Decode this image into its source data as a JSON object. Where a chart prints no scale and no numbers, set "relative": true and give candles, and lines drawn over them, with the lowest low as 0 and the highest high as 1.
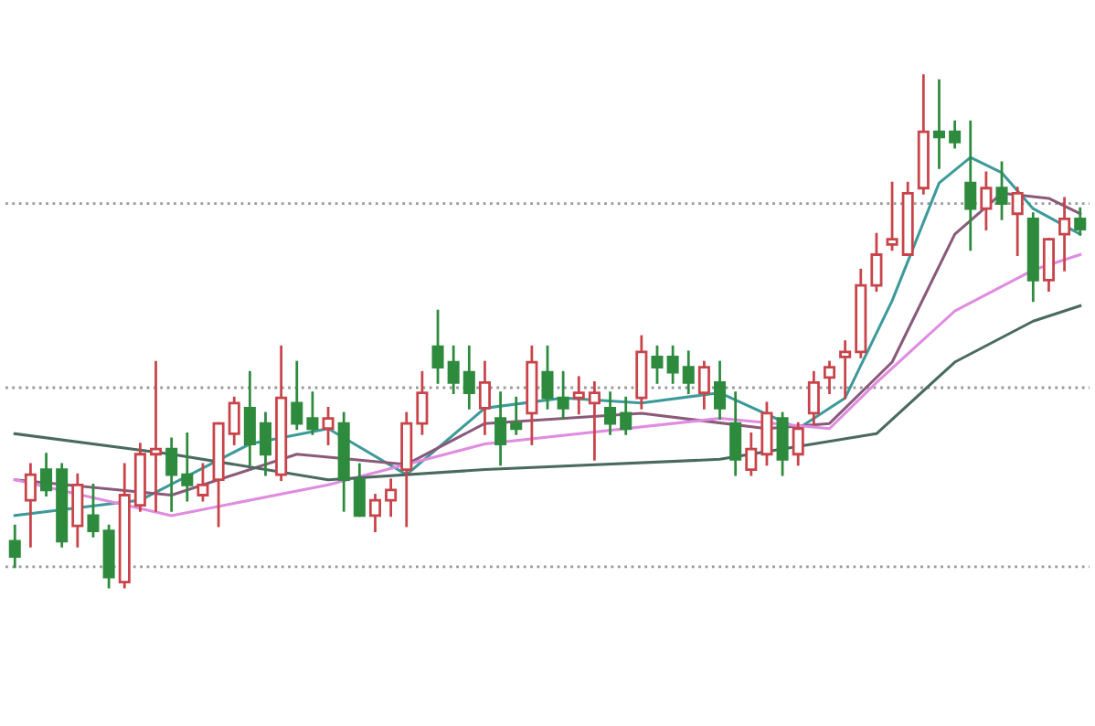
{
  "chart_data": {
    "type": "candlestick",
    "relative": true,
    "categories": [
      null,
      null,
      null,
      null,
      null,
      null,
      null,
      null,
      null,
      null,
      null,
      null,
      null,
      null,
      null,
      null,
      null,
      null,
      null,
      null,
      null,
      null,
      null,
      null,
      null,
      null,
      null,
      null,
      null,
      null,
      null,
      null,
      null,
      null,
      null,
      null,
      null,
      null,
      null,
      null,
      null,
      null,
      null,
      null,
      null,
      null,
      null,
      null,
      null,
      null,
      null,
      null,
      null,
      null,
      null,
      null,
      null,
      null,
      null,
      null,
      null,
      null,
      null,
      null,
      null,
      null,
      null,
      null,
      null
    ],
    "ohlc": [
      [
        0.09,
        0.12,
        0.04,
        0.06
      ],
      [
        0.17,
        0.24,
        0.08,
        0.22
      ],
      [
        0.23,
        0.26,
        0.18,
        0.19
      ],
      [
        0.23,
        0.24,
        0.08,
        0.09
      ],
      [
        0.12,
        0.22,
        0.08,
        0.2
      ],
      [
        0.14,
        0.2,
        0.1,
        0.11
      ],
      [
        0.11,
        0.12,
        0.0,
        0.02
      ],
      [
        0.01,
        0.24,
        0.0,
        0.18
      ],
      [
        0.16,
        0.28,
        0.15,
        0.26
      ],
      [
        0.26,
        0.44,
        0.15,
        0.27
      ],
      [
        0.27,
        0.29,
        0.15,
        0.22
      ],
      [
        0.22,
        0.3,
        0.17,
        0.2
      ],
      [
        0.18,
        0.24,
        0.17,
        0.2
      ],
      [
        0.21,
        0.32,
        0.12,
        0.32
      ],
      [
        0.3,
        0.37,
        0.28,
        0.36
      ],
      [
        0.35,
        0.42,
        0.24,
        0.28
      ],
      [
        0.32,
        0.34,
        0.22,
        0.26
      ],
      [
        0.22,
        0.47,
        0.21,
        0.37
      ],
      [
        0.36,
        0.44,
        0.31,
        0.32
      ],
      [
        0.33,
        0.38,
        0.3,
        0.31
      ],
      [
        0.31,
        0.35,
        0.28,
        0.33
      ],
      [
        0.32,
        0.34,
        0.15,
        0.21
      ],
      [
        0.21,
        0.24,
        0.14,
        0.14
      ],
      [
        0.14,
        0.18,
        0.11,
        0.17
      ],
      [
        0.17,
        0.21,
        0.14,
        0.19
      ],
      [
        0.23,
        0.34,
        0.12,
        0.32
      ],
      [
        0.32,
        0.42,
        0.3,
        0.38
      ],
      [
        0.47,
        0.54,
        0.4,
        0.43
      ],
      [
        0.44,
        0.47,
        0.38,
        0.4
      ],
      [
        0.42,
        0.47,
        0.35,
        0.38
      ],
      [
        0.35,
        0.44,
        0.3,
        0.4
      ],
      [
        0.33,
        0.38,
        0.24,
        0.28
      ],
      [
        0.32,
        0.37,
        0.3,
        0.31
      ],
      [
        0.34,
        0.47,
        0.28,
        0.44
      ],
      [
        0.42,
        0.47,
        0.35,
        0.37
      ],
      [
        0.37,
        0.42,
        0.33,
        0.35
      ],
      [
        0.37,
        0.41,
        0.34,
        0.38
      ],
      [
        0.36,
        0.4,
        0.25,
        0.38
      ],
      [
        0.35,
        0.38,
        0.3,
        0.32
      ],
      [
        0.34,
        0.37,
        0.3,
        0.31
      ],
      [
        0.37,
        0.49,
        0.35,
        0.46
      ],
      [
        0.45,
        0.47,
        0.4,
        0.43
      ],
      [
        0.45,
        0.47,
        0.4,
        0.42
      ],
      [
        0.43,
        0.46,
        0.38,
        0.4
      ],
      [
        0.38,
        0.44,
        0.35,
        0.43
      ],
      [
        0.4,
        0.44,
        0.33,
        0.35
      ],
      [
        0.32,
        0.38,
        0.22,
        0.25
      ],
      [
        0.23,
        0.3,
        0.22,
        0.27
      ],
      [
        0.26,
        0.36,
        0.24,
        0.34
      ],
      [
        0.33,
        0.34,
        0.22,
        0.25
      ],
      [
        0.26,
        0.32,
        0.24,
        0.31
      ],
      [
        0.34,
        0.42,
        0.32,
        0.4
      ],
      [
        0.41,
        0.44,
        0.38,
        0.43
      ],
      [
        0.45,
        0.48,
        0.37,
        0.46
      ],
      [
        0.46,
        0.62,
        0.45,
        0.59
      ],
      [
        0.59,
        0.69,
        0.58,
        0.65
      ],
      [
        0.67,
        0.79,
        0.66,
        0.68
      ],
      [
        0.65,
        0.79,
        0.65,
        0.77
      ],
      [
        0.78,
        1.0,
        0.77,
        0.89
      ],
      [
        0.89,
        0.99,
        0.82,
        0.88
      ],
      [
        0.89,
        0.91,
        0.86,
        0.87
      ],
      [
        0.79,
        0.91,
        0.66,
        0.74
      ],
      [
        0.74,
        0.81,
        0.7,
        0.78
      ],
      [
        0.78,
        0.83,
        0.72,
        0.75
      ],
      [
        0.73,
        0.78,
        0.65,
        0.77
      ],
      [
        0.72,
        0.73,
        0.56,
        0.6
      ],
      [
        0.6,
        0.68,
        0.58,
        0.68
      ],
      [
        0.69,
        0.76,
        0.62,
        0.72
      ],
      [
        0.72,
        0.74,
        0.69,
        0.7
      ]
    ],
    "colors": [
      "#2e8b3e",
      "#c8444a",
      "#2e8b3e",
      "#2e8b3e",
      "#c8444a",
      "#2e8b3e",
      "#2e8b3e",
      "#c8444a",
      "#c8444a",
      "#c8444a",
      "#2e8b3e",
      "#2e8b3e",
      "#c8444a",
      "#c8444a",
      "#c8444a",
      "#2e8b3e",
      "#2e8b3e",
      "#c8444a",
      "#2e8b3e",
      "#2e8b3e",
      "#c8444a",
      "#2e8b3e",
      "#2e8b3e",
      "#c8444a",
      "#c8444a",
      "#c8444a",
      "#c8444a",
      "#2e8b3e",
      "#2e8b3e",
      "#2e8b3e",
      "#c8444a",
      "#2e8b3e",
      "#2e8b3e",
      "#c8444a",
      "#2e8b3e",
      "#2e8b3e",
      "#c8444a",
      "#c8444a",
      "#2e8b3e",
      "#2e8b3e",
      "#c8444a",
      "#2e8b3e",
      "#2e8b3e",
      "#2e8b3e",
      "#c8444a",
      "#2e8b3e",
      "#2e8b3e",
      "#c8444a",
      "#c8444a",
      "#2e8b3e",
      "#c8444a",
      "#c8444a",
      "#c8444a",
      "#c8444a",
      "#c8444a",
      "#c8444a",
      "#c8444a",
      "#c8444a",
      "#c8444a",
      "#2e8b3e",
      "#2e8b3e",
      "#2e8b3e",
      "#c8444a",
      "#2e8b3e",
      "#c8444a",
      "#2e8b3e",
      "#c8444a",
      "#c8444a",
      "#2e8b3e"
    ],
    "series": [
      {
        "type": "line",
        "color": "#3e9a9a",
        "values": [
          0.14,
          null,
          null,
          null,
          null,
          null,
          null,
          null,
          0.17,
          null,
          null,
          null,
          null,
          null,
          null,
          0.28,
          null,
          null,
          null,
          null,
          0.31,
          null,
          null,
          null,
          null,
          0.22,
          null,
          null,
          null,
          null,
          0.35,
          null,
          null,
          null,
          null,
          0.37,
          null,
          null,
          null,
          null,
          0.36,
          null,
          null,
          null,
          null,
          0.38,
          null,
          null,
          null,
          null,
          0.31,
          null,
          null,
          0.37,
          null,
          null,
          0.56,
          null,
          null,
          0.79,
          null,
          0.84,
          null,
          0.81,
          null,
          0.74,
          null,
          null,
          0.69
        ]
      },
      {
        "type": "line",
        "color": "#8a5a7a",
        "values": [
          0.21,
          null,
          null,
          null,
          null,
          null,
          null,
          null,
          null,
          null,
          0.18,
          null,
          null,
          null,
          null,
          null,
          null,
          null,
          0.26,
          null,
          null,
          null,
          null,
          null,
          null,
          0.24,
          null,
          null,
          null,
          null,
          0.32,
          null,
          null,
          null,
          null,
          null,
          null,
          null,
          null,
          null,
          0.34,
          null,
          null,
          null,
          null,
          null,
          null,
          null,
          0.31,
          null,
          null,
          null,
          0.32,
          null,
          null,
          null,
          0.44,
          null,
          null,
          null,
          0.69,
          null,
          null,
          0.77,
          null,
          null,
          0.76,
          null,
          0.73
        ]
      },
      {
        "type": "line",
        "color": "#e08ce0",
        "values": [
          0.21,
          null,
          null,
          null,
          null,
          null,
          null,
          null,
          null,
          null,
          0.14,
          null,
          null,
          null,
          null,
          null,
          null,
          null,
          null,
          null,
          0.2,
          null,
          null,
          null,
          null,
          null,
          null,
          null,
          null,
          null,
          0.28,
          null,
          null,
          null,
          null,
          null,
          null,
          null,
          null,
          null,
          null,
          null,
          null,
          null,
          null,
          0.33,
          null,
          null,
          null,
          null,
          null,
          null,
          0.31,
          null,
          null,
          0.4,
          null,
          null,
          null,
          null,
          0.54,
          null,
          null,
          null,
          null,
          0.62,
          null,
          null,
          0.65
        ]
      },
      {
        "type": "line",
        "color": "#4a6a60",
        "values": [
          0.3,
          null,
          null,
          null,
          null,
          null,
          null,
          null,
          null,
          null,
          0.26,
          null,
          null,
          null,
          null,
          null,
          null,
          null,
          null,
          null,
          0.21,
          null,
          null,
          null,
          null,
          null,
          null,
          null,
          null,
          null,
          0.23,
          null,
          null,
          null,
          null,
          null,
          null,
          null,
          null,
          null,
          null,
          null,
          null,
          null,
          null,
          0.25,
          null,
          null,
          null,
          null,
          null,
          null,
          null,
          null,
          null,
          0.3,
          null,
          null,
          null,
          null,
          0.44,
          null,
          null,
          null,
          null,
          0.52,
          null,
          null,
          0.55
        ]
      }
    ],
    "ref_lines": [
      {
        "axis": "y",
        "value": 0.75,
        "color": "#999999",
        "line_style": "dotted"
      },
      {
        "axis": "y",
        "value": 0.39,
        "color": "#999999",
        "line_style": "dotted"
      },
      {
        "axis": "y",
        "value": 0.04,
        "color": "#999999",
        "line_style": "dotted"
      }
    ]
  }
}
